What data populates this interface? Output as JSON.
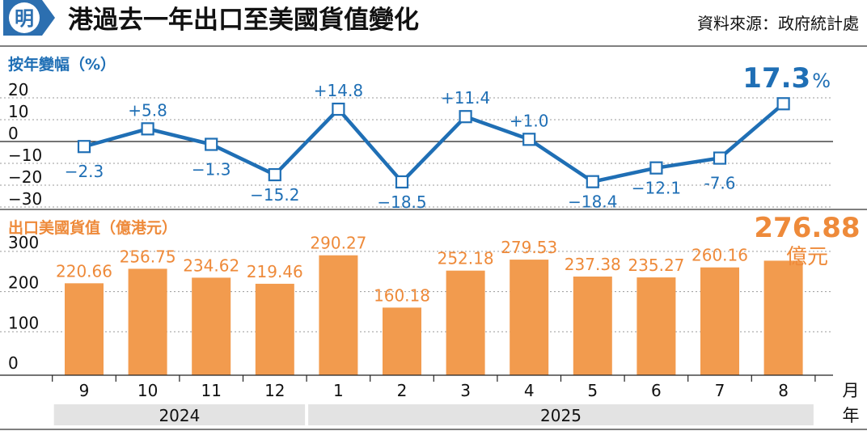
{
  "header": {
    "logo_text": "明",
    "title": "港過去一年出口至美國貨值變化",
    "source": "資料來源：政府統計處"
  },
  "colors": {
    "line": "#1f6fb5",
    "bar": "#f29b4e",
    "bar_label": "#ee8a3a",
    "logo_bg": "#2c6fb0",
    "year_band": "#e3e3e3",
    "grid": "#9a9a9a"
  },
  "chart_data": [
    {
      "type": "line",
      "title": "按年變幅（%）",
      "categories": [
        "9",
        "10",
        "11",
        "12",
        "1",
        "2",
        "3",
        "4",
        "5",
        "6",
        "7",
        "8"
      ],
      "values": [
        -2.3,
        5.8,
        -1.3,
        -15.2,
        14.8,
        -18.5,
        11.4,
        1.0,
        -18.4,
        -12.1,
        -7.6,
        17.3
      ],
      "point_labels": [
        "−2.3",
        "+5.8",
        "−1.3",
        "−15.2",
        "+14.8",
        "−18.5",
        "+11.4",
        "+1.0",
        "−18.4",
        "−12.1",
        "-7.6",
        ""
      ],
      "yticks": [
        "20",
        "10",
        "0",
        "−10",
        "−20",
        "−30"
      ],
      "ylim": [
        -30,
        20
      ],
      "highlight": {
        "value": "17.3",
        "unit": "%"
      }
    },
    {
      "type": "bar",
      "title": "出口美國貨值（億港元）",
      "categories": [
        "9",
        "10",
        "11",
        "12",
        "1",
        "2",
        "3",
        "4",
        "5",
        "6",
        "7",
        "8"
      ],
      "values": [
        220.66,
        256.75,
        234.62,
        219.46,
        290.27,
        160.18,
        252.18,
        279.53,
        237.38,
        235.27,
        260.16,
        276.88
      ],
      "value_labels": [
        "220.66",
        "256.75",
        "234.62",
        "219.46",
        "290.27",
        "160.18",
        "252.18",
        "279.53",
        "237.38",
        "235.27",
        "260.16",
        ""
      ],
      "yticks": [
        "300",
        "200",
        "100",
        "0"
      ],
      "ylim": [
        0,
        300
      ],
      "highlight": {
        "value": "276.88",
        "unit": "億元"
      }
    }
  ],
  "x_axis": {
    "years": [
      {
        "label": "2024",
        "months": 4
      },
      {
        "label": "2025",
        "months": 8
      }
    ],
    "unit_month": "月",
    "unit_year": "年"
  }
}
